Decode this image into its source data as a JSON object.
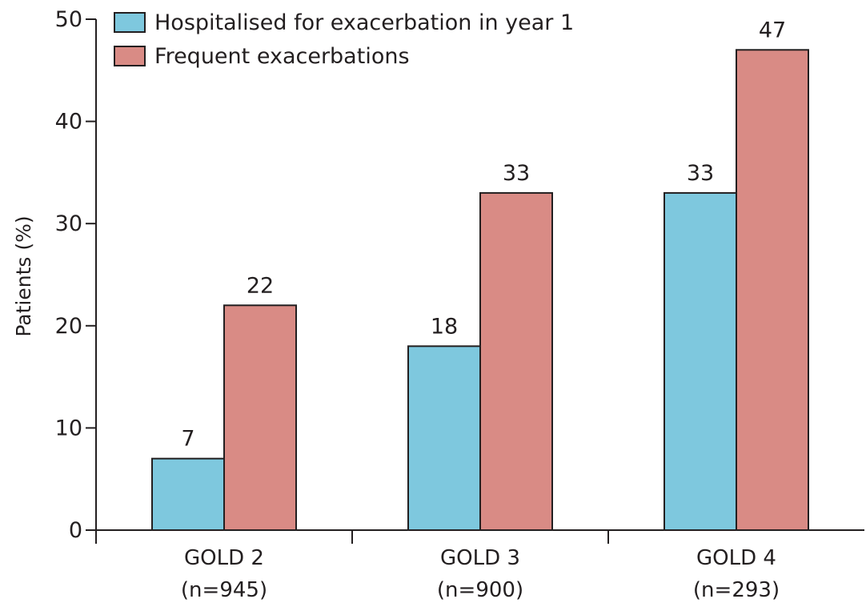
{
  "chart_data": {
    "type": "bar",
    "categories": [
      "GOLD 2",
      "GOLD 3",
      "GOLD 4"
    ],
    "category_sublabels": [
      "(n=945)",
      "(n=900)",
      "(n=293)"
    ],
    "series": [
      {
        "name": "Hospitalised for exacerbation in year 1",
        "values": [
          7,
          18,
          33
        ],
        "value_labels": [
          "7",
          "18",
          "33"
        ],
        "color": "#7ec8de"
      },
      {
        "name": "Frequent exacerbations",
        "values": [
          22,
          33,
          47
        ],
        "value_labels": [
          "22",
          "33",
          "47"
        ],
        "color": "#d98b85"
      }
    ],
    "title": "",
    "xlabel": "",
    "ylabel": "Patients (%)",
    "ylim": [
      0,
      50
    ],
    "yticks": [
      0,
      10,
      20,
      30,
      40,
      50
    ],
    "legend_position": "top-left",
    "grid": false
  }
}
